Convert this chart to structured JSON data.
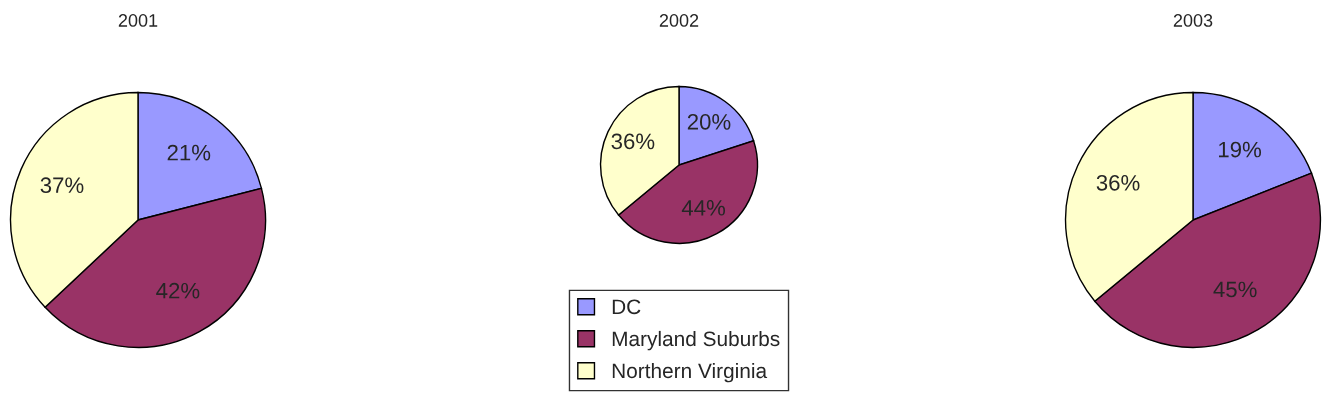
{
  "chart_data": [
    {
      "type": "pie",
      "title": "2001",
      "categories": [
        null,
        null,
        null
      ],
      "values": [
        21,
        42,
        37
      ],
      "colors": [
        "#9999ff",
        "#993366",
        "#ffffcc"
      ],
      "value_labels": [
        "21%",
        "42%",
        "37%"
      ]
    },
    {
      "type": "pie",
      "title": "2002",
      "categories": [
        "DC",
        "Maryland Suburbs",
        "Northern Virginia"
      ],
      "values": [
        20,
        44,
        36
      ],
      "colors": [
        "#9999ff",
        "#993366",
        "#ffffcc"
      ],
      "value_labels": [
        "20%",
        "44%",
        "36%"
      ],
      "legend": "bottom"
    },
    {
      "type": "pie",
      "title": "2003",
      "categories": [
        null,
        null,
        null
      ],
      "values": [
        19,
        45,
        36
      ],
      "colors": [
        "#9999ff",
        "#993366",
        "#ffffcc"
      ],
      "value_labels": [
        "19%",
        "45%",
        "36%"
      ]
    }
  ]
}
